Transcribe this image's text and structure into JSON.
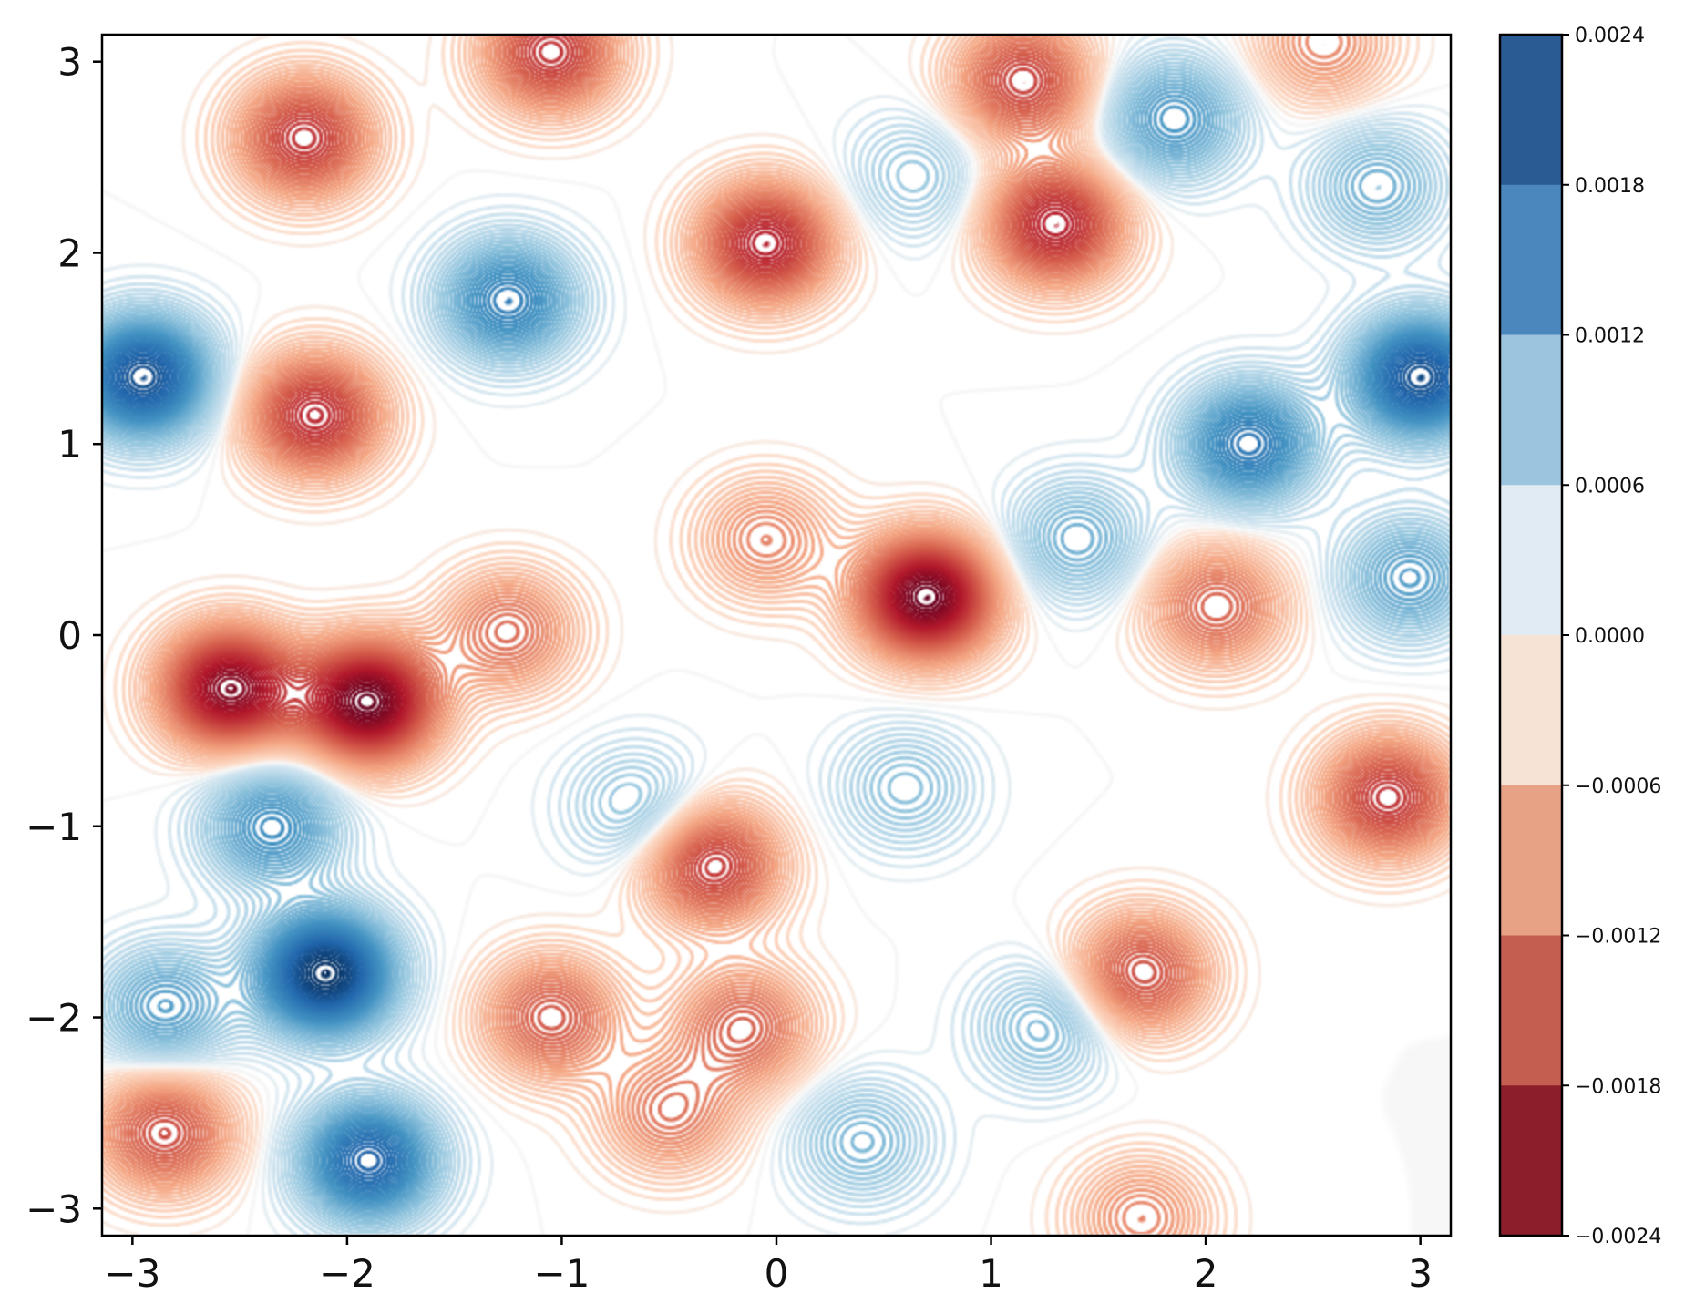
{
  "chart_data": {
    "type": "contour",
    "title": "",
    "xlabel": "",
    "ylabel": "",
    "xlim": [
      -3.14159,
      3.14159
    ],
    "ylim": [
      -3.14159,
      3.14159
    ],
    "x_ticks": [
      -3,
      -2,
      -1,
      0,
      1,
      2,
      3
    ],
    "x_tick_labels": [
      "−3",
      "−2",
      "−1",
      "0",
      "1",
      "2",
      "3"
    ],
    "y_ticks": [
      3,
      2,
      1,
      0,
      -1,
      -2,
      -3
    ],
    "y_tick_labels": [
      "3",
      "2",
      "1",
      "0",
      "−1",
      "−2",
      "−3"
    ],
    "grid": false,
    "colormap": "RdBu",
    "colorbar": {
      "levels": [
        0.0024,
        0.0018,
        0.0012,
        0.0006,
        0.0,
        -0.0006,
        -0.0012,
        -0.0018,
        -0.0024
      ],
      "tick_labels": [
        "0.0024",
        "0.0018",
        "0.0012",
        "0.0006",
        "0.0000",
        "−0.0006",
        "−0.0012",
        "−0.0018",
        "−0.0024"
      ],
      "band_colors": [
        "#2a5b92",
        "#4b87bd",
        "#9cc4df",
        "#e0ebf3",
        "#f7e2d6",
        "#e7a286",
        "#c45e50",
        "#8b1e2a"
      ]
    },
    "extrema": [
      {
        "x": -1.9,
        "y": -0.35,
        "value": -0.0024
      },
      {
        "x": -2.55,
        "y": -0.28,
        "value": -0.0022
      },
      {
        "x": 0.7,
        "y": 0.2,
        "value": -0.0024
      },
      {
        "x": -2.1,
        "y": -1.77,
        "value": 0.0024
      },
      {
        "x": -2.95,
        "y": 1.35,
        "value": 0.0021
      },
      {
        "x": 3.0,
        "y": 1.35,
        "value": 0.0021
      },
      {
        "x": -1.25,
        "y": 1.75,
        "value": 0.0015
      },
      {
        "x": 1.3,
        "y": 2.15,
        "value": -0.0018
      },
      {
        "x": -0.05,
        "y": 2.05,
        "value": -0.0018
      },
      {
        "x": -2.15,
        "y": 1.15,
        "value": -0.0017
      },
      {
        "x": -1.05,
        "y": 3.05,
        "value": -0.0016
      },
      {
        "x": -0.3,
        "y": -1.2,
        "value": -0.0016
      },
      {
        "x": -1.9,
        "y": -2.75,
        "value": 0.0019
      },
      {
        "x": 2.85,
        "y": -0.85,
        "value": -0.0016
      },
      {
        "x": 1.7,
        "y": -1.77,
        "value": -0.0014
      },
      {
        "x": -2.2,
        "y": 2.6,
        "value": -0.0016
      },
      {
        "x": 2.2,
        "y": 1.0,
        "value": 0.0016
      },
      {
        "x": 1.15,
        "y": 2.9,
        "value": -0.0015
      },
      {
        "x": -1.05,
        "y": -2.0,
        "value": -0.0013
      },
      {
        "x": -0.15,
        "y": -2.05,
        "value": -0.0012
      },
      {
        "x": 2.05,
        "y": 0.15,
        "value": -0.0012
      },
      {
        "x": -1.25,
        "y": 0.02,
        "value": -0.0011
      },
      {
        "x": -2.35,
        "y": -1.0,
        "value": 0.0013
      },
      {
        "x": -2.85,
        "y": -1.95,
        "value": 0.0011
      },
      {
        "x": 1.4,
        "y": 0.5,
        "value": 0.0009
      },
      {
        "x": 2.95,
        "y": 0.3,
        "value": 0.0011
      },
      {
        "x": 0.4,
        "y": -2.65,
        "value": 0.0008
      },
      {
        "x": 0.6,
        "y": -0.8,
        "value": 0.0007
      },
      {
        "x": -0.65,
        "y": -0.9,
        "value": 0.0007
      },
      {
        "x": 1.25,
        "y": -2.05,
        "value": 0.0008
      },
      {
        "x": 2.8,
        "y": 2.35,
        "value": 0.0009
      },
      {
        "x": 1.85,
        "y": 2.7,
        "value": 0.0012
      },
      {
        "x": -0.05,
        "y": 0.5,
        "value": -0.0009
      },
      {
        "x": -2.85,
        "y": -2.6,
        "value": -0.0014
      },
      {
        "x": 2.55,
        "y": 3.1,
        "value": -0.0009
      },
      {
        "x": -0.5,
        "y": -2.5,
        "value": -0.001
      },
      {
        "x": 0.65,
        "y": 2.4,
        "value": 0.0006
      },
      {
        "x": 1.7,
        "y": -3.05,
        "value": -0.0009
      }
    ]
  }
}
